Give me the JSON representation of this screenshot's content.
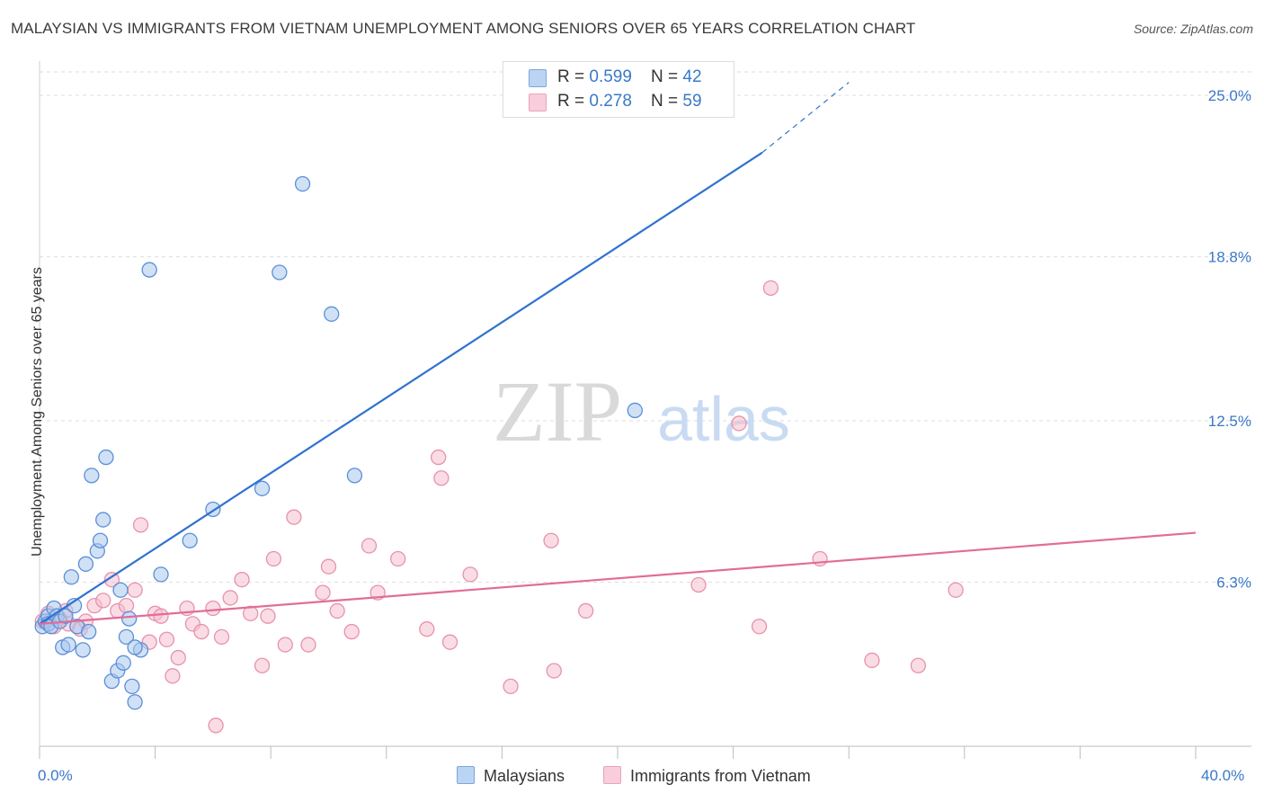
{
  "title": "MALAYSIAN VS IMMIGRANTS FROM VIETNAM UNEMPLOYMENT AMONG SENIORS OVER 65 YEARS CORRELATION CHART",
  "source": "Source: ZipAtlas.com",
  "watermark": {
    "zip": "ZIP",
    "atlas": "atlas"
  },
  "legend": {
    "rows": [
      {
        "r_label": "R = ",
        "r_value": "0.599",
        "n_label": "N = ",
        "n_value": "42"
      },
      {
        "r_label": "R = ",
        "r_value": "0.278",
        "n_label": "N = ",
        "n_value": "59"
      }
    ],
    "bottom": [
      "Malaysians",
      "Immigrants from Vietnam"
    ]
  },
  "colors": {
    "blue_fill": "#a9c8ef",
    "blue_stroke": "#5b8fd6",
    "blue_line": "#2f72cf",
    "pink_fill": "#f6bfd0",
    "pink_stroke": "#e792ad",
    "pink_line": "#e26c98",
    "grid": "#dddddd",
    "axis_label": "#3a78c9"
  },
  "chart_data": {
    "type": "scatter",
    "title": "MALAYSIAN VS IMMIGRANTS FROM VIETNAM UNEMPLOYMENT AMONG SENIORS OVER 65 YEARS CORRELATION CHART",
    "xlabel": "",
    "ylabel": "Unemployment Among Seniors over 65 years",
    "xlim": [
      0,
      40
    ],
    "ylim": [
      0,
      25.9
    ],
    "x_tick_labels": [
      "0.0%",
      "40.0%"
    ],
    "y_ticks": [
      6.3,
      12.5,
      18.8,
      25.0
    ],
    "y_tick_labels": [
      "6.3%",
      "12.5%",
      "18.8%",
      "25.0%"
    ],
    "series": [
      {
        "name": "Malaysians",
        "trend": {
          "x0": 0,
          "y0": 4.7,
          "x1": 25,
          "y1": 22.8,
          "dash_to_x": 28,
          "dash_to_y": 25.5
        },
        "points": [
          [
            0.1,
            4.6
          ],
          [
            0.2,
            4.8
          ],
          [
            0.3,
            5.0
          ],
          [
            0.3,
            4.7
          ],
          [
            0.4,
            4.6
          ],
          [
            0.5,
            5.3
          ],
          [
            0.6,
            5.0
          ],
          [
            0.7,
            4.8
          ],
          [
            0.8,
            3.8
          ],
          [
            0.9,
            5.0
          ],
          [
            1.0,
            3.9
          ],
          [
            1.1,
            6.5
          ],
          [
            1.2,
            5.4
          ],
          [
            1.3,
            4.6
          ],
          [
            1.5,
            3.7
          ],
          [
            1.6,
            7.0
          ],
          [
            1.7,
            4.4
          ],
          [
            1.8,
            10.4
          ],
          [
            2.0,
            7.5
          ],
          [
            2.2,
            8.7
          ],
          [
            2.3,
            11.1
          ],
          [
            2.5,
            2.5
          ],
          [
            2.7,
            2.9
          ],
          [
            2.8,
            6.0
          ],
          [
            2.9,
            3.2
          ],
          [
            3.0,
            4.2
          ],
          [
            3.1,
            4.9
          ],
          [
            3.2,
            2.3
          ],
          [
            3.3,
            1.7
          ],
          [
            3.5,
            3.7
          ],
          [
            3.8,
            18.3
          ],
          [
            4.2,
            6.6
          ],
          [
            5.2,
            7.9
          ],
          [
            6.0,
            9.1
          ],
          [
            7.7,
            9.9
          ],
          [
            8.3,
            18.2
          ],
          [
            9.1,
            21.6
          ],
          [
            10.1,
            16.6
          ],
          [
            10.9,
            10.4
          ],
          [
            20.6,
            12.9
          ],
          [
            2.1,
            7.9
          ],
          [
            3.3,
            3.8
          ]
        ]
      },
      {
        "name": "Immigrants from Vietnam",
        "trend": {
          "x0": 0,
          "y0": 4.7,
          "x1": 40,
          "y1": 8.2
        },
        "points": [
          [
            0.1,
            4.8
          ],
          [
            0.3,
            5.1
          ],
          [
            0.5,
            4.6
          ],
          [
            0.7,
            4.9
          ],
          [
            0.9,
            5.2
          ],
          [
            1.0,
            4.7
          ],
          [
            1.4,
            4.5
          ],
          [
            1.6,
            4.8
          ],
          [
            1.9,
            5.4
          ],
          [
            2.2,
            5.6
          ],
          [
            2.5,
            6.4
          ],
          [
            2.7,
            5.2
          ],
          [
            3.0,
            5.4
          ],
          [
            3.3,
            6.0
          ],
          [
            3.5,
            8.5
          ],
          [
            3.8,
            4.0
          ],
          [
            4.0,
            5.1
          ],
          [
            4.2,
            5.0
          ],
          [
            4.4,
            4.1
          ],
          [
            4.6,
            2.7
          ],
          [
            4.8,
            3.4
          ],
          [
            5.1,
            5.3
          ],
          [
            5.3,
            4.7
          ],
          [
            5.6,
            4.4
          ],
          [
            6.0,
            5.3
          ],
          [
            6.1,
            0.8
          ],
          [
            6.3,
            4.2
          ],
          [
            6.6,
            5.7
          ],
          [
            7.0,
            6.4
          ],
          [
            7.3,
            5.1
          ],
          [
            7.7,
            3.1
          ],
          [
            7.9,
            5.0
          ],
          [
            8.1,
            7.2
          ],
          [
            8.5,
            3.9
          ],
          [
            8.8,
            8.8
          ],
          [
            9.3,
            3.9
          ],
          [
            9.8,
            5.9
          ],
          [
            10.0,
            6.9
          ],
          [
            10.3,
            5.2
          ],
          [
            10.8,
            4.4
          ],
          [
            11.4,
            7.7
          ],
          [
            11.7,
            5.9
          ],
          [
            12.4,
            7.2
          ],
          [
            13.4,
            4.5
          ],
          [
            13.8,
            11.1
          ],
          [
            13.9,
            10.3
          ],
          [
            14.2,
            4.0
          ],
          [
            14.9,
            6.6
          ],
          [
            16.3,
            2.3
          ],
          [
            17.7,
            7.9
          ],
          [
            17.8,
            2.9
          ],
          [
            18.9,
            5.2
          ],
          [
            22.8,
            6.2
          ],
          [
            24.2,
            12.4
          ],
          [
            24.9,
            4.6
          ],
          [
            25.3,
            17.6
          ],
          [
            27.0,
            7.2
          ],
          [
            28.8,
            3.3
          ],
          [
            30.4,
            3.1
          ]
        ]
      }
    ],
    "extra_pink_point": [
      31.7,
      6.0
    ]
  }
}
